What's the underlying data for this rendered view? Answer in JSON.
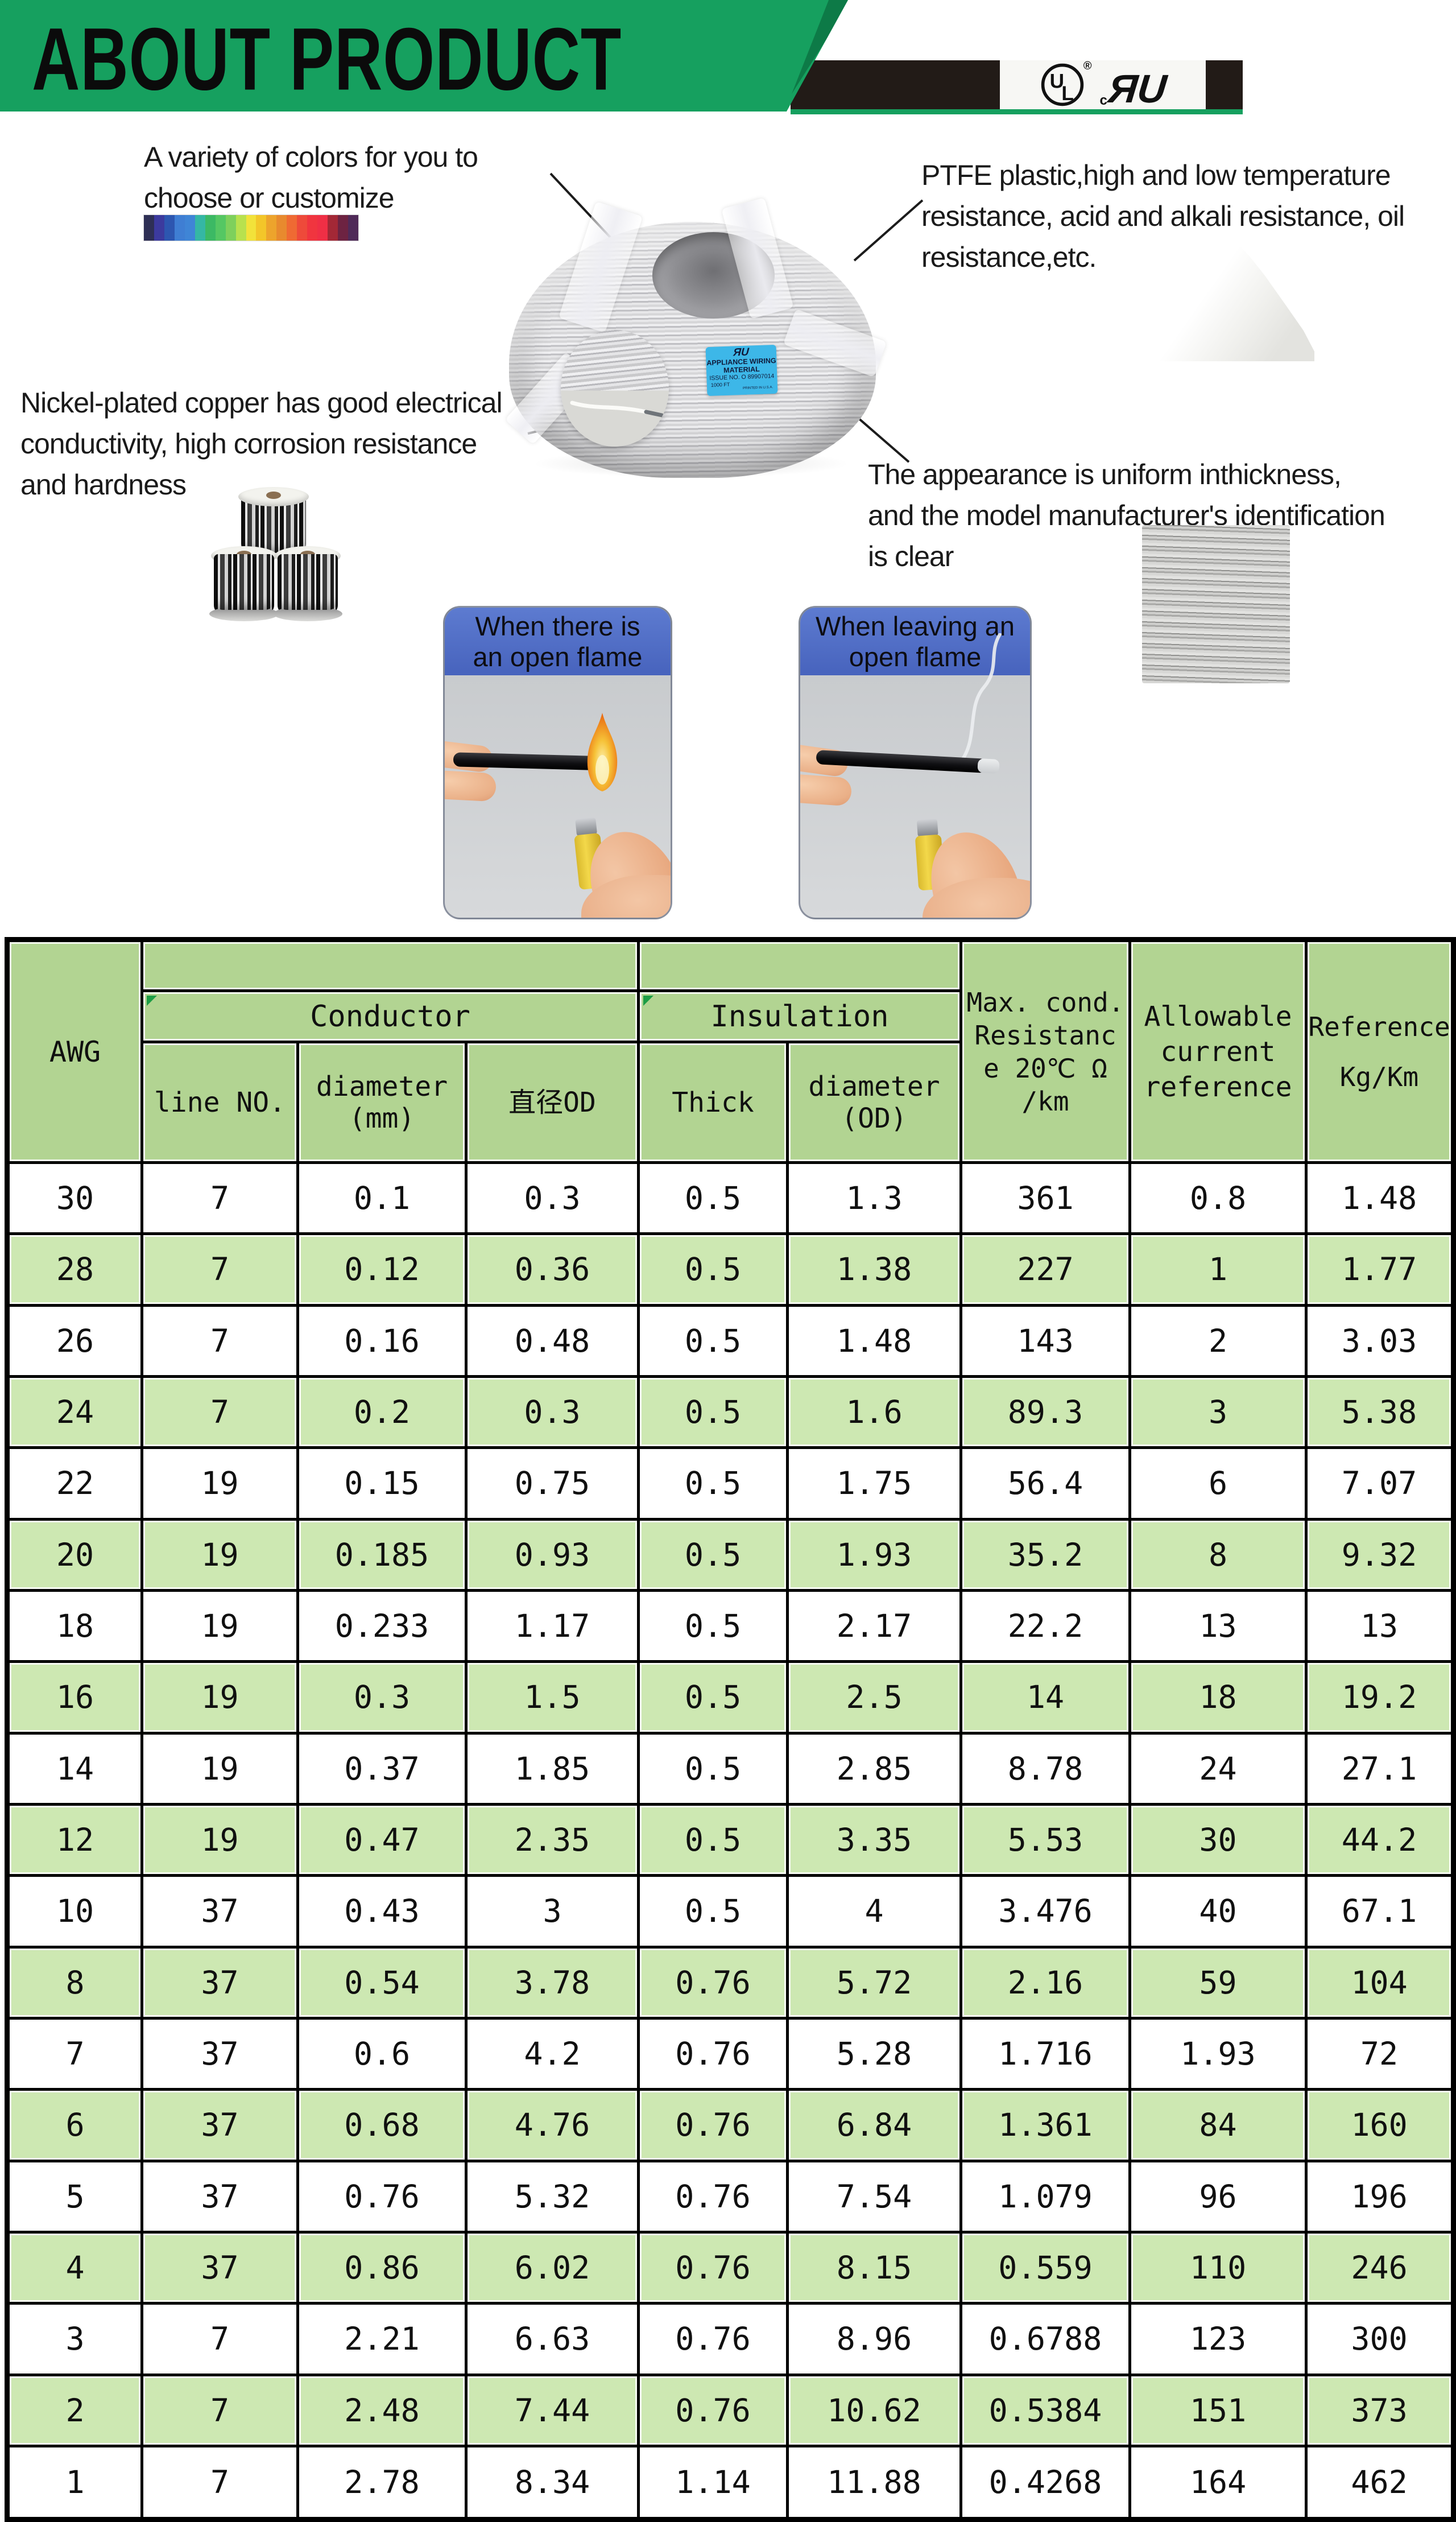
{
  "banner": {
    "title": "ABOUT PRODUCT",
    "green": "#16a05f",
    "dark_green": "#0d7a47",
    "bar_black": "#221b17"
  },
  "ul_marks": {
    "circle_u": "U",
    "circle_l": "L",
    "registered": "®",
    "recognized": "ЯU",
    "recognized_c": "c"
  },
  "annotations": {
    "colors": {
      "lines": [
        "A variety of colors for you to",
        "choose or customize"
      ]
    },
    "ptfe": {
      "lines": [
        "PTFE plastic,high and low temperature",
        "resistance, acid and alkali resistance, oil",
        "resistance,etc."
      ]
    },
    "nickel": {
      "lines": [
        "Nickel-plated copper has good electrical",
        "conductivity, high corrosion resistance",
        "and hardness"
      ]
    },
    "appearance": {
      "lines": [
        "The appearance is uniform inthickness,",
        "and the model manufacturer's identification",
        "is clear"
      ]
    }
  },
  "rainbow_colors": [
    "#2e2f55",
    "#3c3a9e",
    "#2d56b0",
    "#3f7ed3",
    "#3f85d6",
    "#35b7a4",
    "#3cb964",
    "#55c763",
    "#7ed05c",
    "#b8e14e",
    "#f2e23a",
    "#f3c629",
    "#eda42c",
    "#e88a2e",
    "#ef6a33",
    "#ee4a3a",
    "#f0353f",
    "#ef2f45",
    "#a32836",
    "#6d2342",
    "#4f2a58"
  ],
  "coil_label": {
    "ul_mark": "ЯU",
    "line1": "APPLIANCE WIRING",
    "line2": "MATERIAL",
    "line3": "ISSUE NO. O 89907014",
    "line4": "1000 FT",
    "line5": "PRINTED IN U.S.A.",
    "blue": "#3db7e8"
  },
  "flame_cards": [
    {
      "title_lines": [
        "When there is",
        "an open flame"
      ]
    },
    {
      "title_lines": [
        "When leaving an",
        "open flame"
      ]
    }
  ],
  "card_blue": "#4e6cc5",
  "table": {
    "header_green": "#b2d492",
    "row_green": "#cde8b2",
    "awg": "AWG",
    "groups": {
      "conductor": "Conductor",
      "insulation": "Insulation"
    },
    "sub": {
      "line_no": "line NO.",
      "diameter_mm": [
        "diameter",
        "(mm)"
      ],
      "od_cn": "直径OD",
      "thick": "Thick",
      "diameter_od": [
        "diameter",
        "(OD)"
      ]
    },
    "max_cond_lines": [
      "Max. cond.",
      "Resistanc",
      "e 20℃ Ω",
      "/km"
    ],
    "allowable_lines": [
      "Allowable",
      "current",
      "reference"
    ],
    "reference_lines": [
      "Reference",
      "Kg/Km"
    ],
    "rows": [
      [
        "30",
        "7",
        "0.1",
        "0.3",
        "0.5",
        "1.3",
        "361",
        "0.8",
        "1.48"
      ],
      [
        "28",
        "7",
        "0.12",
        "0.36",
        "0.5",
        "1.38",
        "227",
        "1",
        "1.77"
      ],
      [
        "26",
        "7",
        "0.16",
        "0.48",
        "0.5",
        "1.48",
        "143",
        "2",
        "3.03"
      ],
      [
        "24",
        "7",
        "0.2",
        "0.3",
        "0.5",
        "1.6",
        "89.3",
        "3",
        "5.38"
      ],
      [
        "22",
        "19",
        "0.15",
        "0.75",
        "0.5",
        "1.75",
        "56.4",
        "6",
        "7.07"
      ],
      [
        "20",
        "19",
        "0.185",
        "0.93",
        "0.5",
        "1.93",
        "35.2",
        "8",
        "9.32"
      ],
      [
        "18",
        "19",
        "0.233",
        "1.17",
        "0.5",
        "2.17",
        "22.2",
        "13",
        "13"
      ],
      [
        "16",
        "19",
        "0.3",
        "1.5",
        "0.5",
        "2.5",
        "14",
        "18",
        "19.2"
      ],
      [
        "14",
        "19",
        "0.37",
        "1.85",
        "0.5",
        "2.85",
        "8.78",
        "24",
        "27.1"
      ],
      [
        "12",
        "19",
        "0.47",
        "2.35",
        "0.5",
        "3.35",
        "5.53",
        "30",
        "44.2"
      ],
      [
        "10",
        "37",
        "0.43",
        "3",
        "0.5",
        "4",
        "3.476",
        "40",
        "67.1"
      ],
      [
        "8",
        "37",
        "0.54",
        "3.78",
        "0.76",
        "5.72",
        "2.16",
        "59",
        "104"
      ],
      [
        "7",
        "37",
        "0.6",
        "4.2",
        "0.76",
        "5.28",
        "1.716",
        "1.93",
        "72"
      ],
      [
        "6",
        "37",
        "0.68",
        "4.76",
        "0.76",
        "6.84",
        "1.361",
        "84",
        "160"
      ],
      [
        "5",
        "37",
        "0.76",
        "5.32",
        "0.76",
        "7.54",
        "1.079",
        "96",
        "196"
      ],
      [
        "4",
        "37",
        "0.86",
        "6.02",
        "0.76",
        "8.15",
        "0.559",
        "110",
        "246"
      ],
      [
        "3",
        "7",
        "2.21",
        "6.63",
        "0.76",
        "8.96",
        "0.6788",
        "123",
        "300"
      ],
      [
        "2",
        "7",
        "2.48",
        "7.44",
        "0.76",
        "10.62",
        "0.5384",
        "151",
        "373"
      ],
      [
        "1",
        "7",
        "2.78",
        "8.34",
        "1.14",
        "11.88",
        "0.4268",
        "164",
        "462"
      ]
    ]
  }
}
